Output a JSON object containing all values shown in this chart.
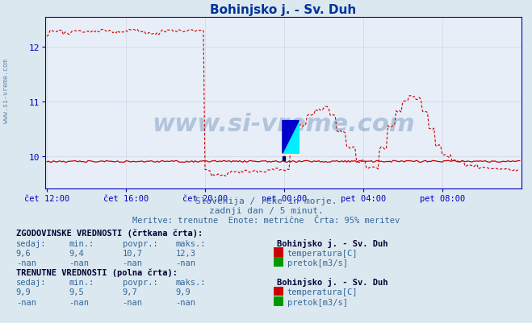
{
  "title": "Bohinjsko j. - Sv. Duh",
  "title_color": "#003399",
  "bg_color": "#dce8f0",
  "plot_bg_color": "#e8eef8",
  "grid_color": "#c0c8d8",
  "axis_color": "#0000bb",
  "tick_color": "#336699",
  "text_color": "#336699",
  "dashed_color": "#cc0000",
  "solid_color": "#cc0000",
  "xlabels": [
    "čet 12:00",
    "čet 16:00",
    "čet 20:00",
    "pet 00:00",
    "pet 04:00",
    "pet 08:00"
  ],
  "xtick_positions": [
    0,
    48,
    96,
    144,
    192,
    240
  ],
  "ylim": [
    9.4,
    12.55
  ],
  "yticks": [
    10,
    11,
    12
  ],
  "watermark": "www.si-vreme.com",
  "subtitle1": "Slovenija / reke in morje.",
  "subtitle2": "zadnji dan / 5 minut.",
  "subtitle3": "Meritve: trenutne  Enote: metrične  Črta: 95% meritev",
  "legend_title_hist": "ZGODOVINSKE VREDNOSTI (črtkana črta):",
  "legend_title_curr": "TRENUTNE VREDNOSTI (polna črta):",
  "hist_sedaj": "9,6",
  "hist_min": "9,4",
  "hist_povpr": "10,7",
  "hist_maks": "12,3",
  "curr_sedaj": "9,9",
  "curr_min": "9,5",
  "curr_povpr": "9,7",
  "curr_maks": "9,9",
  "total_points": 288,
  "left_label": "www.si-vreme.com"
}
